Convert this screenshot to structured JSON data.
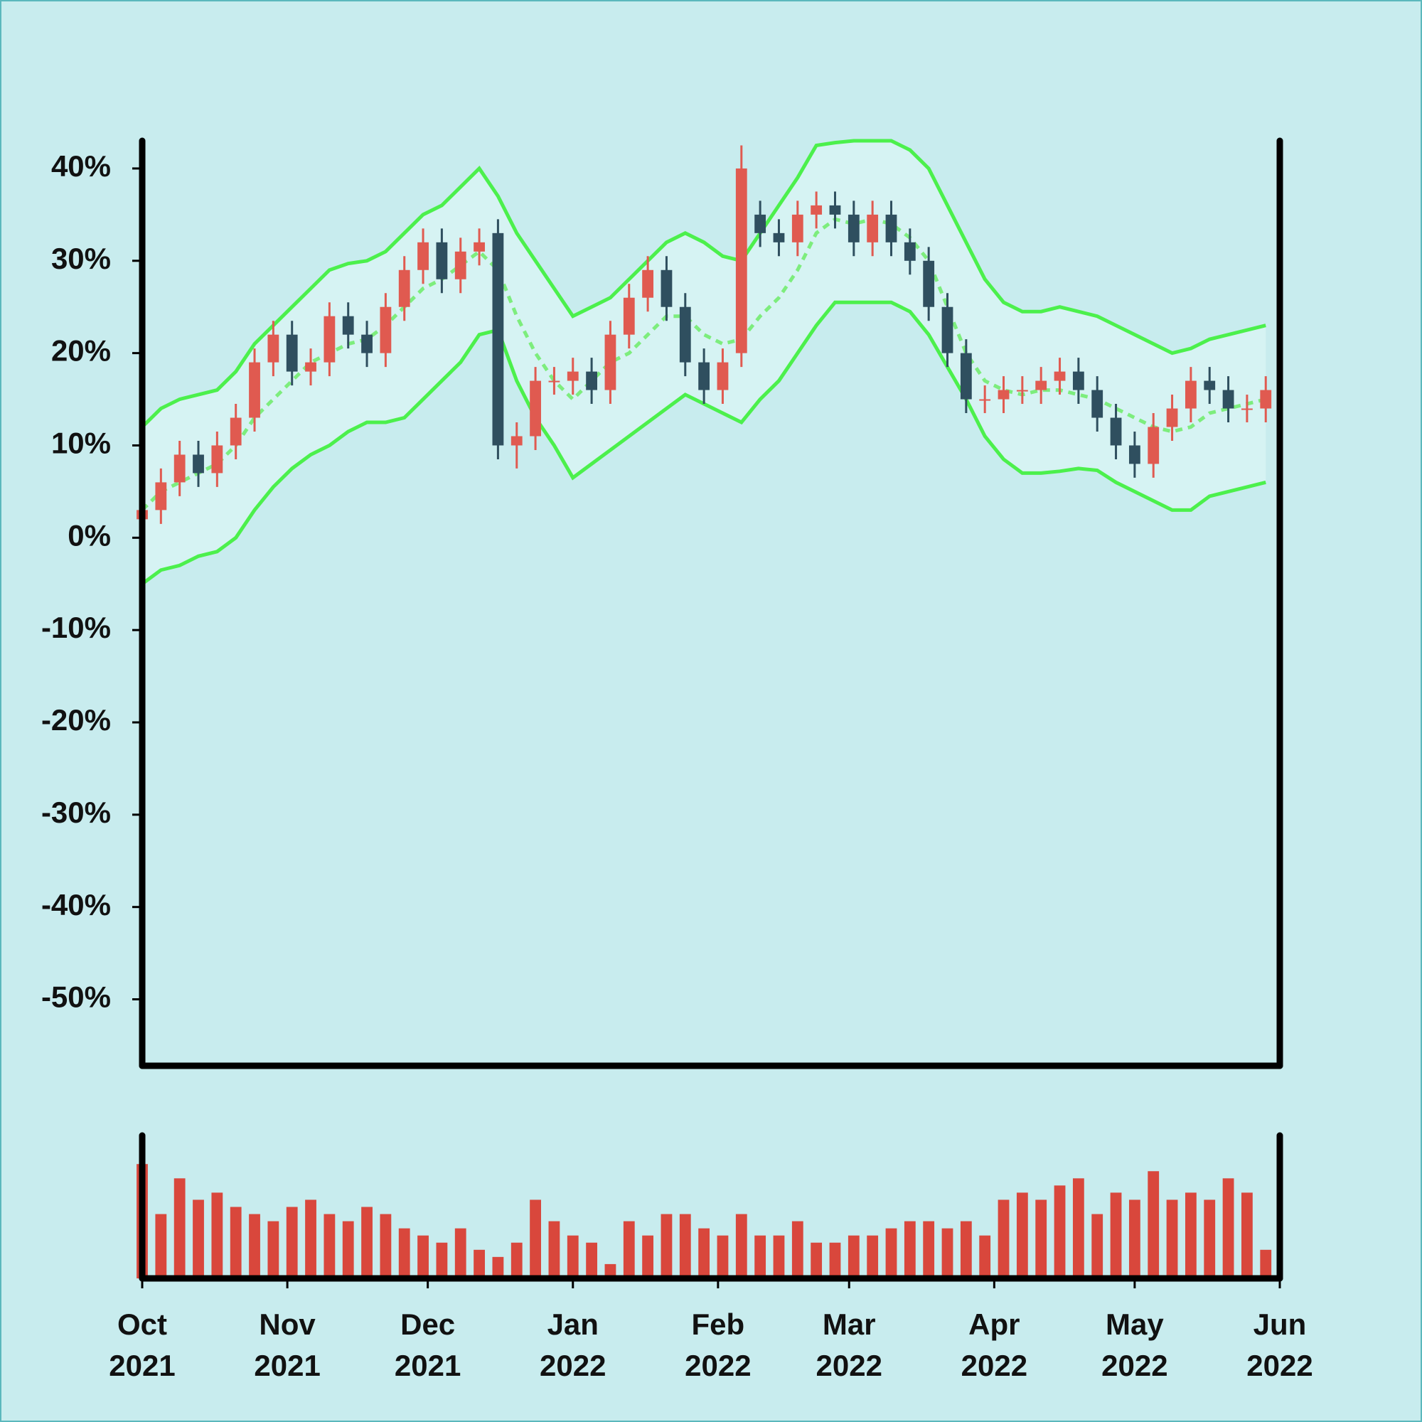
{
  "chart_data": {
    "type": "candlestick",
    "x": [
      0,
      4,
      8,
      12,
      16,
      20,
      24,
      28,
      32,
      36,
      40,
      44,
      48,
      52,
      56,
      60,
      64,
      68,
      72,
      76,
      80,
      84,
      88,
      92,
      96,
      100,
      104,
      108,
      112,
      116,
      120,
      124,
      128,
      132,
      136,
      140,
      144,
      148,
      152,
      156,
      160,
      164,
      168,
      172,
      176,
      180,
      184,
      188,
      192,
      196,
      200,
      204,
      208,
      212,
      216,
      220,
      224,
      228,
      232,
      236,
      240
    ],
    "open": [
      2,
      3,
      6,
      9,
      7,
      10,
      13,
      19,
      22,
      18,
      19,
      24,
      22,
      20,
      25,
      29,
      32,
      28,
      31,
      33,
      10,
      11,
      17,
      17,
      18,
      16,
      22,
      26,
      29,
      25,
      19,
      16,
      20,
      35,
      33,
      32,
      35,
      36,
      35,
      32,
      35,
      32,
      30,
      25,
      20,
      15,
      15,
      16,
      16,
      17,
      18,
      16,
      13,
      10,
      8,
      12,
      14,
      17,
      16,
      14,
      14
    ],
    "high": [
      4.5,
      7.5,
      10.5,
      10.5,
      11.5,
      14.5,
      20.5,
      23.5,
      23.5,
      20.5,
      25.5,
      25.5,
      23.5,
      26.5,
      30.5,
      33.5,
      33.5,
      32.5,
      33.5,
      34.5,
      12.5,
      18.5,
      18.5,
      19.5,
      19.5,
      23.5,
      27.5,
      30.5,
      30.5,
      26.5,
      20.5,
      20.5,
      42.5,
      36.5,
      34.5,
      36.5,
      37.5,
      37.5,
      36.5,
      36.5,
      36.5,
      33.5,
      31.5,
      26.5,
      21.5,
      16.5,
      17.5,
      17.5,
      18.5,
      19.5,
      19.5,
      17.5,
      14.5,
      11.5,
      13.5,
      15.5,
      18.5,
      18.5,
      17.5,
      15.5,
      17.5
    ],
    "low": [
      0.5,
      1.5,
      4.5,
      5.5,
      5.5,
      8.5,
      11.5,
      17.5,
      16.5,
      16.5,
      17.5,
      20.5,
      18.5,
      18.5,
      23.5,
      27.5,
      26.5,
      26.5,
      29.5,
      8.5,
      7.5,
      9.5,
      15.5,
      15.5,
      14.5,
      14.5,
      20.5,
      24.5,
      23.5,
      17.5,
      14.5,
      14.5,
      18.5,
      31.5,
      30.5,
      30.5,
      33.5,
      33.5,
      30.5,
      30.5,
      30.5,
      28.5,
      23.5,
      18.5,
      13.5,
      13.5,
      13.5,
      14.5,
      14.5,
      15.5,
      14.5,
      11.5,
      8.5,
      6.5,
      6.5,
      10.5,
      12.5,
      14.5,
      12.5,
      12.5,
      12.5
    ],
    "close": [
      3,
      6,
      9,
      7,
      10,
      13,
      19,
      22,
      18,
      19,
      24,
      22,
      20,
      25,
      29,
      32,
      28,
      31,
      32,
      10,
      11,
      17,
      17,
      18,
      16,
      22,
      26,
      29,
      25,
      19,
      16,
      19,
      40,
      33,
      32,
      35,
      36,
      35,
      32,
      35,
      32,
      30,
      25,
      20,
      15,
      15,
      16,
      16,
      17,
      18,
      16,
      13,
      10,
      8,
      12,
      14,
      17,
      16,
      14,
      14,
      16
    ],
    "up_color": "#e05a50",
    "down_color": "#2f4f5f",
    "bands": {
      "color": "#4cf04c",
      "middle_color": "#7ded7d",
      "fill": "#d6f3f3",
      "upper": [
        12,
        14,
        15,
        15.5,
        16,
        18,
        21,
        23,
        25,
        27,
        29,
        29.7,
        30,
        31,
        33,
        35,
        36,
        38,
        40,
        37,
        33,
        30,
        27,
        24,
        25,
        26,
        28,
        30,
        32,
        33,
        32,
        30.5,
        30,
        33,
        36,
        39,
        42.5,
        42.8,
        43,
        43,
        43,
        42,
        40,
        36,
        32,
        28,
        25.5,
        24.5,
        24.5,
        25,
        24.5,
        24,
        23,
        22,
        21,
        20,
        20.5,
        21.5,
        22,
        22.5,
        23
      ],
      "middle": [
        3,
        5,
        6,
        7,
        8,
        10,
        13,
        15,
        17,
        19,
        20,
        21,
        21.5,
        23,
        25,
        27,
        28,
        29.5,
        31,
        29,
        24,
        20,
        17,
        15,
        17,
        19,
        20,
        22,
        24,
        24,
        22,
        21,
        21.5,
        24,
        26,
        29,
        33,
        34.5,
        34,
        34.5,
        34,
        32.5,
        30,
        25,
        20,
        17,
        16,
        15.5,
        16,
        16,
        15.5,
        15,
        14,
        13,
        12,
        11.5,
        12,
        13.5,
        14,
        14.5,
        15
      ],
      "lower": [
        -5,
        -3.5,
        -3,
        -2,
        -1.5,
        0,
        3,
        5.5,
        7.5,
        9,
        10,
        11.5,
        12.5,
        12.5,
        13,
        15,
        17,
        19,
        22,
        22.5,
        17,
        13,
        10,
        6.5,
        8,
        9.5,
        11,
        12.5,
        14,
        15.5,
        14.5,
        13.5,
        12.5,
        15,
        17,
        20,
        23,
        25.5,
        25.5,
        25.5,
        25.5,
        24.5,
        22,
        18.5,
        15,
        11,
        8.5,
        7,
        7,
        7.2,
        7.5,
        7.3,
        6,
        5,
        4,
        3,
        3,
        4.5,
        5,
        5.5,
        6
      ]
    },
    "volume": {
      "color": "#d9473c",
      "ylim": [
        0,
        100
      ],
      "values": [
        80,
        45,
        70,
        55,
        60,
        50,
        45,
        40,
        50,
        55,
        45,
        40,
        50,
        45,
        35,
        30,
        25,
        35,
        20,
        15,
        25,
        55,
        40,
        30,
        25,
        10,
        40,
        30,
        45,
        45,
        35,
        30,
        45,
        30,
        30,
        40,
        25,
        25,
        30,
        30,
        35,
        40,
        40,
        35,
        40,
        30,
        55,
        60,
        55,
        65,
        70,
        45,
        60,
        55,
        75,
        55,
        60,
        55,
        70,
        60,
        20
      ]
    },
    "xlim": [
      0,
      243
    ],
    "xticks": [
      {
        "value": 0,
        "label": "Oct 2021"
      },
      {
        "value": 31,
        "label": "Nov 2021"
      },
      {
        "value": 61,
        "label": "Dec 2021"
      },
      {
        "value": 92,
        "label": "Jan 2022"
      },
      {
        "value": 123,
        "label": "Feb 2022"
      },
      {
        "value": 151,
        "label": "Mar 2022"
      },
      {
        "value": 182,
        "label": "Apr 2022"
      },
      {
        "value": 212,
        "label": "May 2022"
      },
      {
        "value": 243,
        "label": "Jun 2022"
      }
    ],
    "ylim": [
      -57.2,
      43
    ],
    "yticks": [
      {
        "value": -50,
        "label": "-50%"
      },
      {
        "value": -40,
        "label": "-40%"
      },
      {
        "value": -30,
        "label": "-30%"
      },
      {
        "value": -20,
        "label": "-20%"
      },
      {
        "value": -10,
        "label": "-10%"
      },
      {
        "value": 0,
        "label": "0%"
      },
      {
        "value": 10,
        "label": "10%"
      },
      {
        "value": 20,
        "label": "20%"
      },
      {
        "value": 30,
        "label": "30%"
      },
      {
        "value": 40,
        "label": "40%"
      }
    ]
  }
}
